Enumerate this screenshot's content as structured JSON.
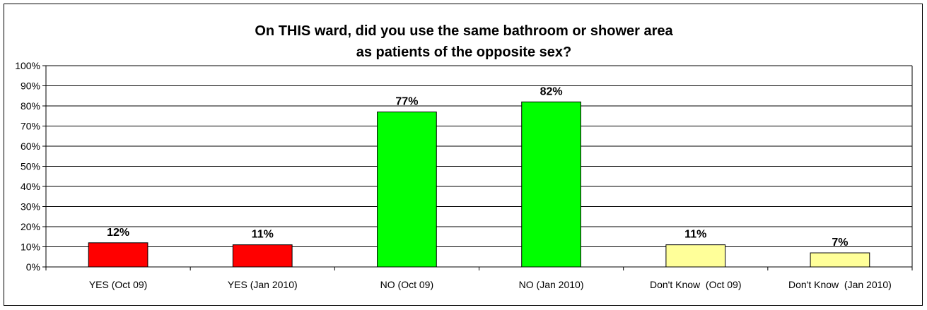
{
  "chart_data": {
    "type": "bar",
    "title": "On THIS ward, did you use the same bathroom or shower area",
    "subtitle": "as patients of the opposite sex?",
    "xlabel": "",
    "ylabel": "",
    "ylim": [
      0,
      100
    ],
    "ytick_step": 10,
    "ytick_suffix": "%",
    "grid": true,
    "legend": "none",
    "categories": [
      "YES (Oct 09)",
      "YES (Jan 2010)",
      "NO (Oct 09)",
      "NO (Jan 2010)",
      "Don't Know  (Oct 09)",
      "Don't Know  (Jan 2010)"
    ],
    "values": [
      12,
      11,
      77,
      82,
      11,
      7
    ],
    "data_labels": [
      "12%",
      "11%",
      "77%",
      "82%",
      "11%",
      "7%"
    ],
    "colors": [
      "#ff0000",
      "#ff0000",
      "#00ff00",
      "#00ff00",
      "#ffff99",
      "#ffff99"
    ]
  }
}
